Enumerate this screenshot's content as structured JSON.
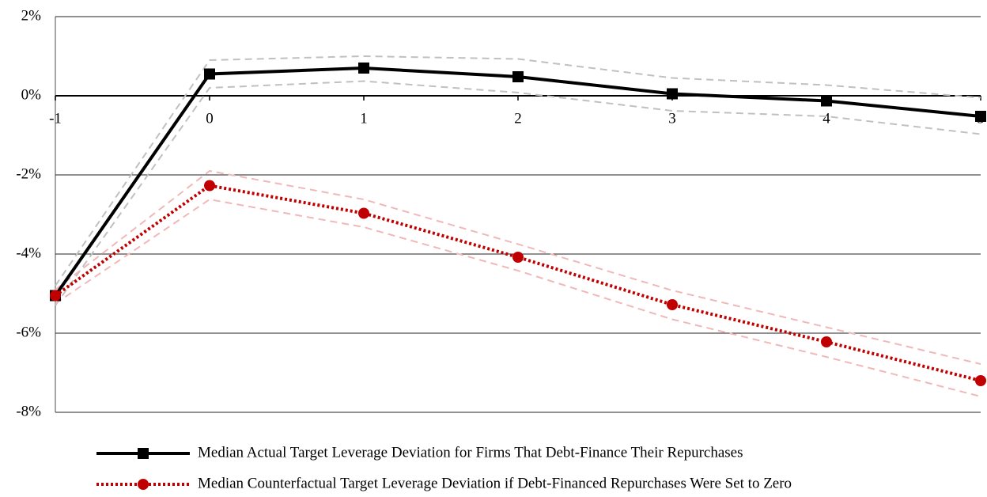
{
  "chart_data": {
    "type": "line",
    "x": [
      -1,
      0,
      1,
      2,
      3,
      4,
      5
    ],
    "series": [
      {
        "color": "#c0c0c0",
        "dash": true,
        "values": [
          -4.8,
          0.9,
          1.0,
          0.93,
          0.45,
          0.27,
          -0.05
        ]
      },
      {
        "color": "#c0c0c0",
        "dash": true,
        "values": [
          -5.3,
          0.2,
          0.37,
          0.08,
          -0.38,
          -0.52,
          -0.97
        ]
      },
      {
        "color": "#f0b8b8",
        "dash": true,
        "values": [
          -4.9,
          -1.9,
          -2.62,
          -3.75,
          -4.92,
          -5.85,
          -6.78
        ]
      },
      {
        "color": "#f0b8b8",
        "dash": true,
        "values": [
          -5.25,
          -2.62,
          -3.32,
          -4.42,
          -5.65,
          -6.6,
          -7.6
        ]
      },
      {
        "name": "Median Actual Target Leverage Deviation for Firms That Debt-Finance Their Repurchases",
        "color": "#000000",
        "marker": "square",
        "values": [
          -5.05,
          0.55,
          0.7,
          0.48,
          0.05,
          -0.13,
          -0.52
        ]
      },
      {
        "name": "Median Counterfactual Target Leverage Deviation if Debt-Financed Repurchases Were Set to Zero",
        "color": "#c00000",
        "marker": "circle",
        "dotted": true,
        "values": [
          -5.05,
          -2.27,
          -2.97,
          -4.08,
          -5.28,
          -6.22,
          -7.2
        ]
      }
    ],
    "xlim": [
      -1,
      5
    ],
    "xticks": [
      -1,
      0,
      1,
      2,
      3,
      4,
      5
    ],
    "ylim": [
      -8,
      2
    ],
    "yticks": [
      {
        "value": -8,
        "label": "-8%"
      },
      {
        "value": -6,
        "label": "-6%"
      },
      {
        "value": -4,
        "label": "-4%"
      },
      {
        "value": -2,
        "label": "-2%"
      },
      {
        "value": 0,
        "label": "0%"
      },
      {
        "value": 2,
        "label": "2%"
      }
    ],
    "grid": true,
    "legend": "bottom"
  }
}
